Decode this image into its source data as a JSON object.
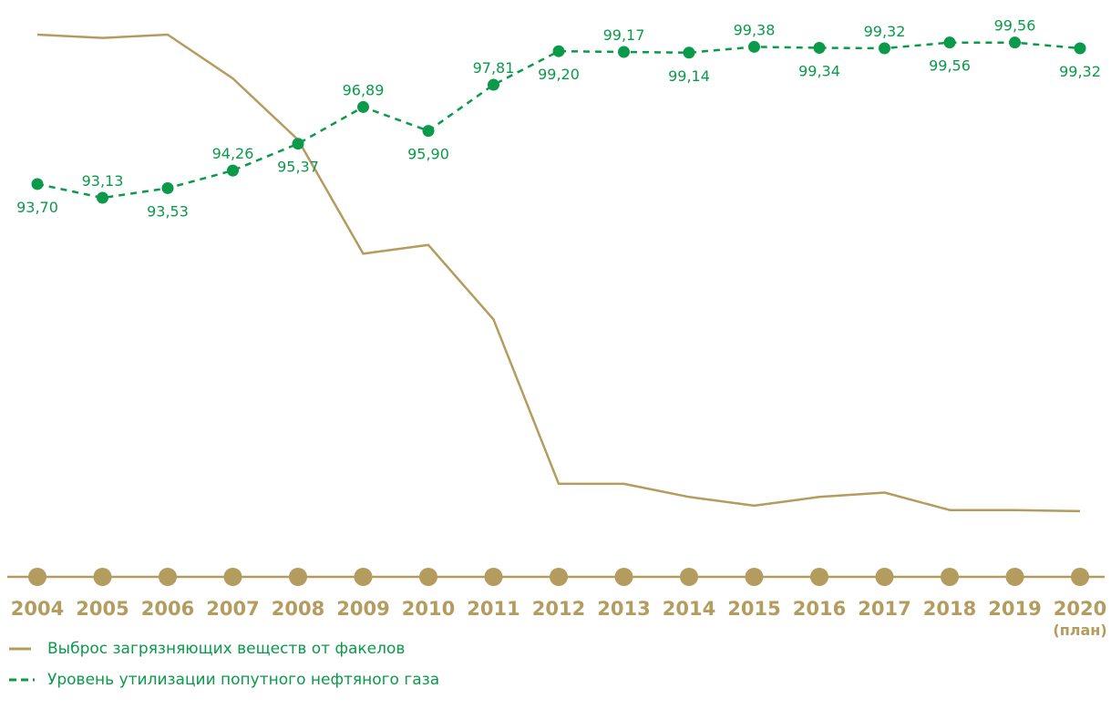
{
  "colors": {
    "emission": "#b49c5e",
    "utilization": "#0a9a4a",
    "axis": "#b49c5e",
    "legend_text": "#0a9a4a"
  },
  "chart_data": {
    "type": "line",
    "categories": [
      "2004",
      "2005",
      "2006",
      "2007",
      "2008",
      "2009",
      "2010",
      "2011",
      "2012",
      "2013",
      "2014",
      "2015",
      "2016",
      "2017",
      "2018",
      "2019",
      "2020"
    ],
    "category_notes": {
      "2020": "(план)"
    },
    "series": [
      {
        "name": "Выброс загрязняющих веществ от факелов",
        "style": "solid",
        "values": [
          100,
          98.5,
          100,
          80,
          52,
          0,
          4,
          -30,
          -105,
          -105,
          -111,
          -115,
          -111,
          -109,
          -117,
          -117,
          -117.5
        ]
      },
      {
        "name": "Уровень утилизации попутного нефтяного газа",
        "style": "dashed",
        "values": [
          93.7,
          93.13,
          93.53,
          94.26,
          95.37,
          96.89,
          95.9,
          97.81,
          99.2,
          99.17,
          99.14,
          99.38,
          99.34,
          99.32,
          99.56,
          99.56,
          99.32
        ],
        "labels": [
          "93,70",
          "93,13",
          "93,53",
          "94,26",
          "95,37",
          "96,89",
          "95,90",
          "97,81",
          "99,20",
          "99,17",
          "99,14",
          "99,38",
          "99,34",
          "99,32",
          "99,56",
          "99,56",
          "99,32"
        ],
        "label_positions": [
          "below",
          "above",
          "below",
          "above",
          "below",
          "above",
          "below",
          "above",
          "below",
          "above",
          "below",
          "above",
          "below",
          "above",
          "below",
          "above",
          "below"
        ]
      }
    ],
    "emission_scale": {
      "min": -130,
      "max": 100
    },
    "utilization_scale": {
      "min": 90,
      "max": 100
    },
    "grid": false
  },
  "legend": {
    "items": [
      {
        "label": "Выброс загрязняющих веществ от факелов"
      },
      {
        "label": "Уровень утилизации попутного нефтяного газа"
      }
    ]
  }
}
